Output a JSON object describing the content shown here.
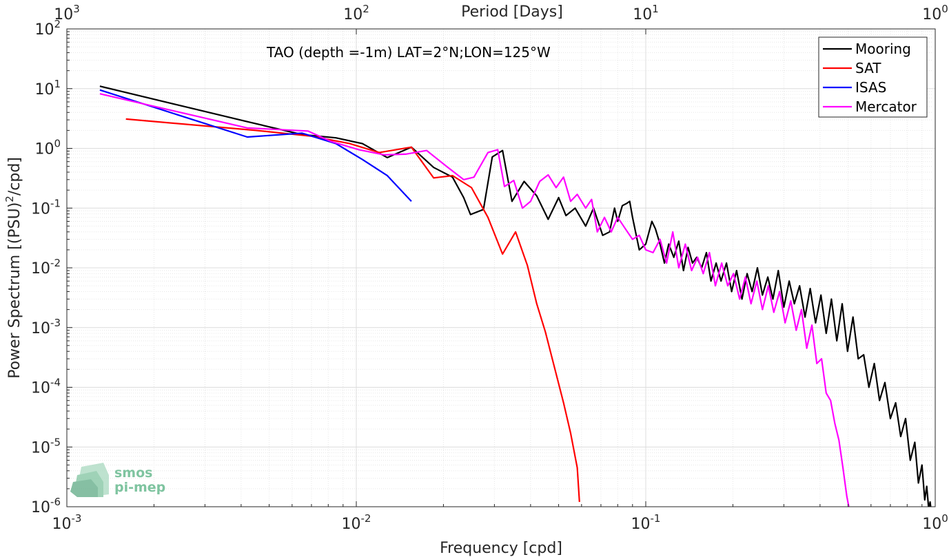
{
  "chart_data": {
    "type": "line",
    "title": "TAO (depth =-1m) LAT=2°N;LON=125°W",
    "xlabel": "Frequency [cpd]",
    "ylabel": "Power Spectrum [(PSU)",
    "ylabel_sup": "2",
    "ylabel_tail": "/cpd]",
    "x2label": "Period [Days]",
    "xscale": "log",
    "yscale": "log",
    "xlim": [
      0.001,
      1
    ],
    "ylim": [
      1e-06,
      100
    ],
    "grid": true,
    "legend_position": "top-right",
    "x_ticks": [
      {
        "value": 0.001,
        "base": "10",
        "exp": "-3"
      },
      {
        "value": 0.01,
        "base": "10",
        "exp": "-2"
      },
      {
        "value": 0.1,
        "base": "10",
        "exp": "-1"
      },
      {
        "value": 1,
        "base": "10",
        "exp": "0"
      }
    ],
    "x2_ticks": [
      {
        "value": 0.001,
        "base": "10",
        "exp": "3"
      },
      {
        "value": 0.01,
        "base": "10",
        "exp": "2"
      },
      {
        "value": 0.1,
        "base": "10",
        "exp": "1"
      },
      {
        "value": 1,
        "base": "10",
        "exp": "0"
      }
    ],
    "y_ticks": [
      {
        "value": 1e-06,
        "base": "10",
        "exp": "-6"
      },
      {
        "value": 1e-05,
        "base": "10",
        "exp": "-5"
      },
      {
        "value": 0.0001,
        "base": "10",
        "exp": "-4"
      },
      {
        "value": 0.001,
        "base": "10",
        "exp": "-3"
      },
      {
        "value": 0.01,
        "base": "10",
        "exp": "-2"
      },
      {
        "value": 0.1,
        "base": "10",
        "exp": "-1"
      },
      {
        "value": 1,
        "base": "10",
        "exp": "0"
      },
      {
        "value": 10,
        "base": "10",
        "exp": "1"
      },
      {
        "value": 100,
        "base": "10",
        "exp": "2"
      }
    ],
    "series": [
      {
        "name": "Mooring",
        "color": "#000000",
        "x": [
          0.0013,
          0.0042,
          0.0065,
          0.0085,
          0.0105,
          0.0128,
          0.0155,
          0.0185,
          0.0215,
          0.0235,
          0.0248,
          0.0275,
          0.0295,
          0.032,
          0.0345,
          0.038,
          0.042,
          0.046,
          0.05,
          0.053,
          0.057,
          0.062,
          0.066,
          0.071,
          0.075,
          0.078,
          0.08,
          0.083,
          0.086,
          0.088,
          0.09,
          0.095,
          0.1,
          0.105,
          0.108,
          0.112,
          0.116,
          0.12,
          0.125,
          0.13,
          0.135,
          0.14,
          0.145,
          0.15,
          0.156,
          0.162,
          0.168,
          0.175,
          0.182,
          0.19,
          0.198,
          0.206,
          0.215,
          0.224,
          0.233,
          0.243,
          0.253,
          0.264,
          0.275,
          0.287,
          0.3,
          0.313,
          0.326,
          0.34,
          0.355,
          0.37,
          0.386,
          0.403,
          0.42,
          0.438,
          0.457,
          0.477,
          0.498,
          0.52,
          0.542,
          0.566,
          0.59,
          0.616,
          0.642,
          0.67,
          0.7,
          0.73,
          0.76,
          0.79,
          0.82,
          0.85,
          0.875,
          0.9,
          0.92,
          0.935,
          0.95,
          0.96,
          0.97
        ],
        "y": [
          11,
          2.8,
          1.7,
          1.5,
          1.2,
          0.7,
          1.05,
          0.48,
          0.33,
          0.15,
          0.078,
          0.095,
          0.72,
          0.92,
          0.13,
          0.28,
          0.16,
          0.065,
          0.15,
          0.075,
          0.1,
          0.05,
          0.1,
          0.035,
          0.04,
          0.1,
          0.06,
          0.11,
          0.12,
          0.13,
          0.07,
          0.02,
          0.025,
          0.06,
          0.045,
          0.025,
          0.012,
          0.025,
          0.015,
          0.028,
          0.009,
          0.022,
          0.012,
          0.015,
          0.01,
          0.018,
          0.006,
          0.012,
          0.006,
          0.012,
          0.004,
          0.009,
          0.003,
          0.008,
          0.004,
          0.01,
          0.0035,
          0.007,
          0.003,
          0.009,
          0.0022,
          0.006,
          0.0025,
          0.005,
          0.0015,
          0.0045,
          0.0012,
          0.0035,
          0.0008,
          0.003,
          0.0006,
          0.0025,
          0.0004,
          0.0015,
          0.0003,
          0.00035,
          0.0001,
          0.00025,
          6e-05,
          0.00012,
          3e-05,
          5.5e-05,
          1.5e-05,
          3e-05,
          6e-06,
          1.2e-05,
          2.5e-06,
          5e-06,
          1.3e-06,
          2.2e-06,
          9e-07,
          1.2e-06,
          8e-07
        ]
      },
      {
        "name": "SAT",
        "color": "#ff0000",
        "x": [
          0.0016,
          0.0045,
          0.007,
          0.0095,
          0.012,
          0.0155,
          0.0185,
          0.0215,
          0.025,
          0.0285,
          0.032,
          0.0355,
          0.039,
          0.042,
          0.045,
          0.048,
          0.052,
          0.055,
          0.058,
          0.059
        ],
        "y": [
          3.1,
          2.0,
          1.6,
          1.2,
          0.85,
          1.05,
          0.32,
          0.35,
          0.22,
          0.07,
          0.017,
          0.04,
          0.011,
          0.0025,
          0.00085,
          0.00025,
          5.5e-05,
          1.7e-05,
          4.5e-06,
          1.2e-06
        ]
      },
      {
        "name": "ISAS",
        "color": "#0000ff",
        "x": [
          0.0013,
          0.0042,
          0.0065,
          0.0085,
          0.0105,
          0.0128,
          0.0155
        ],
        "y": [
          9.5,
          1.55,
          1.8,
          1.2,
          0.65,
          0.35,
          0.13
        ]
      },
      {
        "name": "Mercator",
        "color": "#ff00ff",
        "x": [
          0.0013,
          0.0042,
          0.0068,
          0.0082,
          0.0102,
          0.0125,
          0.0148,
          0.0175,
          0.0205,
          0.0235,
          0.0255,
          0.0285,
          0.0308,
          0.0325,
          0.035,
          0.0375,
          0.04,
          0.043,
          0.046,
          0.049,
          0.052,
          0.055,
          0.058,
          0.062,
          0.065,
          0.068,
          0.072,
          0.076,
          0.08,
          0.085,
          0.09,
          0.095,
          0.1,
          0.106,
          0.112,
          0.118,
          0.124,
          0.13,
          0.137,
          0.144,
          0.151,
          0.158,
          0.166,
          0.174,
          0.183,
          0.192,
          0.201,
          0.211,
          0.221,
          0.231,
          0.242,
          0.253,
          0.265,
          0.277,
          0.29,
          0.303,
          0.317,
          0.331,
          0.345,
          0.36,
          0.375,
          0.39,
          0.405,
          0.42,
          0.435,
          0.45,
          0.465,
          0.48,
          0.495,
          0.505
        ],
        "y": [
          8.2,
          2.2,
          1.95,
          1.3,
          0.95,
          0.78,
          0.8,
          0.92,
          0.5,
          0.3,
          0.33,
          0.85,
          0.95,
          0.23,
          0.29,
          0.1,
          0.13,
          0.28,
          0.36,
          0.22,
          0.33,
          0.13,
          0.17,
          0.1,
          0.14,
          0.04,
          0.07,
          0.04,
          0.07,
          0.045,
          0.03,
          0.035,
          0.02,
          0.018,
          0.03,
          0.012,
          0.04,
          0.01,
          0.025,
          0.009,
          0.015,
          0.008,
          0.018,
          0.005,
          0.012,
          0.005,
          0.008,
          0.003,
          0.007,
          0.0025,
          0.006,
          0.002,
          0.005,
          0.0018,
          0.004,
          0.0012,
          0.0028,
          0.0009,
          0.002,
          0.00045,
          0.0011,
          0.00025,
          0.0003,
          8e-05,
          6e-05,
          2.5e-05,
          1.3e-05,
          4.5e-06,
          1.5e-06,
          9e-07
        ]
      }
    ]
  },
  "watermark": {
    "line1": "smos",
    "line2": "pi-mep",
    "color": "#7fc4a0"
  }
}
